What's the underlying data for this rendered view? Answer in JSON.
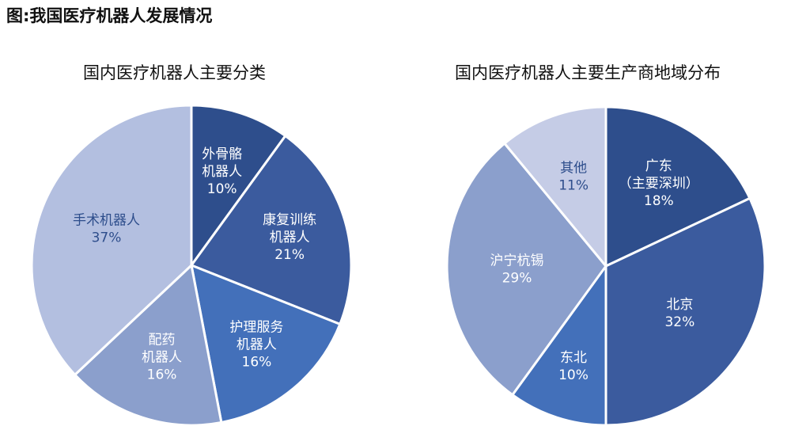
{
  "figure_title": "图:我国医疗机器人发展情况",
  "colors": {
    "dark": "#2e4e8c",
    "medium_dark": "#3b5b9e",
    "medium": "#4370ba",
    "light_medium": "#8b9fcc",
    "light": "#b3bfe0",
    "lightest": "#c5cce6"
  },
  "chart_data": [
    {
      "type": "pie",
      "title": "国内医疗机器人主要分类",
      "slices": [
        {
          "label_lines": [
            "外骨骼",
            "机器人"
          ],
          "value_label": "10%",
          "value": 10,
          "color": "#2e4e8c",
          "text_color": "#ffffff"
        },
        {
          "label_lines": [
            "康复训练",
            "机器人"
          ],
          "value_label": "21%",
          "value": 21,
          "color": "#3b5b9e",
          "text_color": "#ffffff"
        },
        {
          "label_lines": [
            "护理服务",
            "机器人"
          ],
          "value_label": "16%",
          "value": 16,
          "color": "#4370ba",
          "text_color": "#ffffff"
        },
        {
          "label_lines": [
            "配药",
            "机器人"
          ],
          "value_label": "16%",
          "value": 16,
          "color": "#8b9fcc",
          "text_color": "#ffffff"
        },
        {
          "label_lines": [
            "手术机器人"
          ],
          "value_label": "37%",
          "value": 37,
          "color": "#b3bfe0",
          "text_color": "#2e4e8c"
        }
      ]
    },
    {
      "type": "pie",
      "title": "国内医疗机器人主要生产商地域分布",
      "slices": [
        {
          "label_lines": [
            "广东",
            "（主要深圳）"
          ],
          "value_label": "18%",
          "value": 18,
          "color": "#2e4e8c",
          "text_color": "#ffffff"
        },
        {
          "label_lines": [
            "北京"
          ],
          "value_label": "32%",
          "value": 32,
          "color": "#3b5b9e",
          "text_color": "#ffffff"
        },
        {
          "label_lines": [
            "东北"
          ],
          "value_label": "10%",
          "value": 10,
          "color": "#4370ba",
          "text_color": "#ffffff"
        },
        {
          "label_lines": [
            "沪宁杭锡"
          ],
          "value_label": "29%",
          "value": 29,
          "color": "#8b9fcc",
          "text_color": "#ffffff"
        },
        {
          "label_lines": [
            "其他"
          ],
          "value_label": "11%",
          "value": 11,
          "color": "#c5cce6",
          "text_color": "#2e4e8c"
        }
      ]
    }
  ]
}
